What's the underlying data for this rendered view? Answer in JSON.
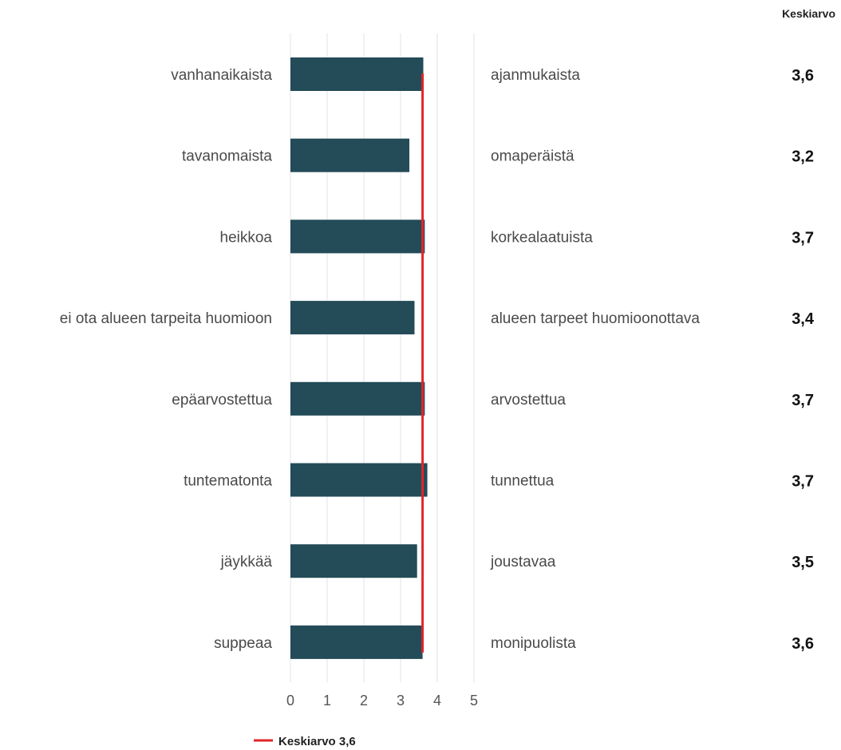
{
  "chart_data": {
    "type": "bar",
    "orientation": "horizontal",
    "average_column_header": "Keskiarvo",
    "left_labels": [
      "vanhanaikaista",
      "tavanomaista",
      "heikkoa",
      "ei ota alueen tarpeita huomioon",
      "epäarvostettua",
      "tuntematonta",
      "jäykkää",
      "suppeaa"
    ],
    "right_labels": [
      "ajanmukaista",
      "omaperäistä",
      "korkealaatuista",
      "alueen tarpeet huomioonottava",
      "arvostettua",
      "tunnettua",
      "joustavaa",
      "monipuolista"
    ],
    "values": [
      3.62,
      3.24,
      3.66,
      3.38,
      3.66,
      3.73,
      3.45,
      3.6
    ],
    "value_labels": [
      "3,6",
      "3,2",
      "3,7",
      "3,4",
      "3,7",
      "3,7",
      "3,5",
      "3,6"
    ],
    "xlim": [
      0,
      5
    ],
    "xticks": [
      "0",
      "1",
      "2",
      "3",
      "4",
      "5"
    ],
    "grid": true,
    "average_line": {
      "value": 3.6,
      "label": "Keskiarvo 3,6",
      "color": "#e0262b"
    },
    "bar_color": "#234b58",
    "grid_color": "#e3e3e8",
    "legend_position": "bottom-left"
  }
}
